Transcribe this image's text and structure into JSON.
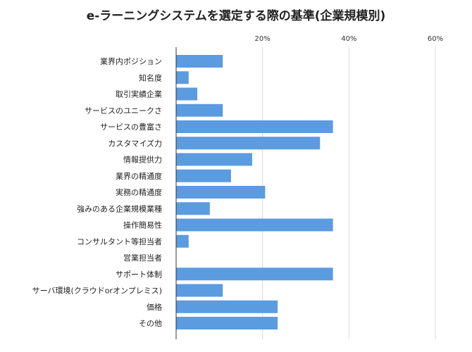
{
  "chart_data": {
    "type": "bar",
    "orientation": "horizontal",
    "title": "e-ラーニングシステムを選定する際の基準(企業規模別)",
    "xlabel": "",
    "ylabel": "",
    "xlim": [
      0,
      60
    ],
    "x_ticks": [
      20,
      40,
      60
    ],
    "x_tick_labels": [
      "20%",
      "40%",
      "60%"
    ],
    "x_axis_position": "top",
    "grid": true,
    "bar_color": "#5b9be0",
    "categories": [
      "業界内ポジション",
      "知名度",
      "取引実績企業",
      "サービスのユニークさ",
      "サービスの豊富さ",
      "カスタマイズ力",
      "情報提供力",
      "業界の精通度",
      "実務の精通度",
      "強みのある企業規模業種",
      "操作簡易性",
      "コンサルタント等担当者",
      "営業担当者",
      "サポート体制",
      "サーバ環境(クラウドorオンプレミス)",
      "価格",
      "その他"
    ],
    "values": [
      10.8,
      2.9,
      4.9,
      10.8,
      36.3,
      33.3,
      17.6,
      12.7,
      20.6,
      7.8,
      36.3,
      2.9,
      0,
      36.3,
      10.8,
      23.5,
      23.5
    ]
  }
}
